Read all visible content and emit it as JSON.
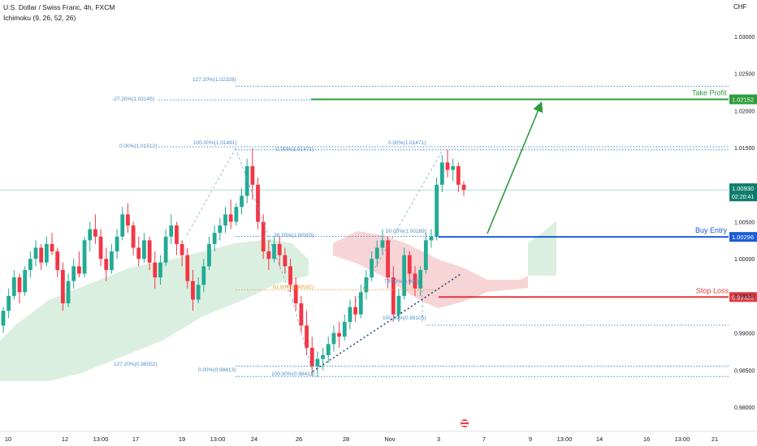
{
  "header": {
    "title": "U.S. Dollar / Swiss Franc, 4h, FXCM",
    "indicator": "Ichimoku (9, 26, 52, 26)",
    "currency": "CHF"
  },
  "chart_data": {
    "type": "candlestick",
    "title": "U.S. Dollar / Swiss Franc, 4h, FXCM",
    "ylim": [
      0.977,
      1.0345
    ],
    "y_ticks": [
      "1.03000",
      "1.02500",
      "1.02000",
      "1.01500",
      "1.01000",
      "1.00500",
      "1.00000",
      "0.99500",
      "0.99000",
      "0.98500",
      "0.98000"
    ],
    "x_ticks": [
      "10",
      "12",
      "13:00",
      "17",
      "19",
      "13:00",
      "24",
      "26",
      "28",
      "Nov",
      "3",
      "7",
      "9",
      "13:00",
      "14",
      "16",
      "13:00",
      "21"
    ],
    "last_price": "1.00930",
    "countdown": "02:20:41",
    "trade_levels": [
      {
        "name": "Take Profit",
        "value": 1.02152,
        "label": "1.02152",
        "color": "#2e9c3c"
      },
      {
        "name": "Buy Entry",
        "value": 1.00296,
        "label": "1.00296",
        "color": "#1e5bd6"
      },
      {
        "name": "Stop Loss",
        "value": 0.99485,
        "label": "0.99485",
        "color": "#e0393e"
      }
    ],
    "fib_labels": [
      {
        "text": "127.20%(1.02328)",
        "value": 1.02328,
        "color": "#4a8ec9"
      },
      {
        "text": "-27.20%(1.02145)",
        "value": 1.02145,
        "color": "#4a8ec9"
      },
      {
        "text": "0.00%(1.01512)",
        "value": 1.01512,
        "color": "#4a8ec9"
      },
      {
        "text": "100.00%(1.01491)",
        "value": 1.01491,
        "color": "#4a8ec9"
      },
      {
        "text": "0.00%(1.01471)",
        "value": 1.01471,
        "color": "#4a8ec9"
      },
      {
        "text": "0.00%(1.01471)",
        "value": 1.01471,
        "color": "#4a8ec9"
      },
      {
        "text": "38.20%(1.00303)",
        "value": 1.00303,
        "color": "#4a8ec9"
      },
      {
        "text": "50.00%(1.00289)",
        "value": 1.00289,
        "color": "#4a8ec9"
      },
      {
        "text": "61.80%(0.99582)",
        "value": 0.99582,
        "color": "#e6a23c"
      },
      {
        "text": "78.60%(0.996)",
        "value": 0.996,
        "color": "#4a8ec9"
      },
      {
        "text": "100.00%(0.99105)",
        "value": 0.99105,
        "color": "#4a8ec9"
      },
      {
        "text": "127.20%(0.98552)",
        "value": 0.98552,
        "color": "#4a8ec9"
      },
      {
        "text": "0.00%(0.98413)",
        "value": 0.98413,
        "color": "#4a8ec9"
      },
      {
        "text": "100.00%(0.98413)",
        "value": 0.98413,
        "color": "#4a8ec9"
      }
    ],
    "candles": [
      [
        0.991,
        0.9935,
        0.99,
        0.993
      ],
      [
        0.993,
        0.996,
        0.992,
        0.995
      ],
      [
        0.995,
        0.9985,
        0.9945,
        0.9975
      ],
      [
        0.9975,
        0.998,
        0.994,
        0.9955
      ],
      [
        0.9955,
        0.999,
        0.995,
        0.9985
      ],
      [
        0.9985,
        1.001,
        0.9975,
        1.0
      ],
      [
        1.0,
        1.0025,
        0.999,
        1.0015
      ],
      [
        1.0015,
        1.002,
        0.9985,
        0.9995
      ],
      [
        0.9995,
        1.003,
        0.999,
        1.002
      ],
      [
        1.002,
        1.0035,
        1.0005,
        1.001
      ],
      [
        1.001,
        1.0015,
        0.9975,
        0.9985
      ],
      [
        0.9985,
        0.9995,
        0.993,
        0.994
      ],
      [
        0.994,
        0.998,
        0.9935,
        0.997
      ],
      [
        0.997,
        1.0,
        0.996,
        0.999
      ],
      [
        0.999,
        1.001,
        0.9975,
        0.998
      ],
      [
        0.998,
        1.003,
        0.9975,
        1.0025
      ],
      [
        1.0025,
        1.005,
        1.001,
        1.004
      ],
      [
        1.004,
        1.006,
        1.002,
        1.003
      ],
      [
        1.003,
        1.004,
        0.999,
        1.0
      ],
      [
        1.0,
        1.0015,
        0.997,
        0.9985
      ],
      [
        0.9985,
        1.002,
        0.998,
        1.001
      ],
      [
        1.001,
        1.004,
        1.0,
        1.003
      ],
      [
        1.003,
        1.007,
        1.0025,
        1.006
      ],
      [
        1.006,
        1.0075,
        1.0035,
        1.0045
      ],
      [
        1.0045,
        1.005,
        1.0005,
        1.0015
      ],
      [
        1.0015,
        1.003,
        0.999,
        1.0
      ],
      [
        1.0,
        1.0035,
        0.9995,
        1.0025
      ],
      [
        1.0025,
        1.003,
        0.9985,
        0.9995
      ],
      [
        0.9995,
        1.001,
        0.996,
        0.9975
      ],
      [
        0.9975,
        1.0005,
        0.9965,
        0.9995
      ],
      [
        0.9995,
        1.004,
        0.999,
        1.003
      ],
      [
        1.003,
        1.006,
        1.002,
        1.0045
      ],
      [
        1.0045,
        1.005,
        1.0005,
        1.002
      ],
      [
        1.002,
        1.0025,
        0.999,
        1.0005
      ],
      [
        1.0005,
        1.0015,
        0.996,
        0.997
      ],
      [
        0.997,
        0.9985,
        0.993,
        0.9945
      ],
      [
        0.9945,
        0.9975,
        0.994,
        0.9965
      ],
      [
        0.9965,
        1.0,
        0.9955,
        0.999
      ],
      [
        0.999,
        1.003,
        0.9985,
        1.002
      ],
      [
        1.002,
        1.0045,
        1.001,
        1.0035
      ],
      [
        1.0035,
        1.0055,
        1.0025,
        1.0045
      ],
      [
        1.0045,
        1.007,
        1.0035,
        1.006
      ],
      [
        1.006,
        1.008,
        1.004,
        1.005
      ],
      [
        1.005,
        1.0075,
        1.0045,
        1.007
      ],
      [
        1.007,
        1.0095,
        1.006,
        1.0085
      ],
      [
        1.0085,
        1.0135,
        1.0075,
        1.0125
      ],
      [
        1.0125,
        1.0149,
        1.008,
        1.01
      ],
      [
        1.01,
        1.011,
        1.004,
        1.005
      ],
      [
        1.005,
        1.006,
        1.0,
        1.001
      ],
      [
        1.001,
        1.0025,
        0.9985,
        1.0
      ],
      [
        1.0,
        1.003,
        0.9995,
        1.002
      ],
      [
        1.002,
        1.003,
        0.999,
        1.0005
      ],
      [
        1.0005,
        1.0015,
        0.998,
        0.999
      ],
      [
        0.999,
        1.0,
        0.9955,
        0.9965
      ],
      [
        0.9965,
        0.9975,
        0.993,
        0.994
      ],
      [
        0.994,
        0.995,
        0.99,
        0.991
      ],
      [
        0.991,
        0.993,
        0.987,
        0.988
      ],
      [
        0.988,
        0.9895,
        0.9842,
        0.9855
      ],
      [
        0.9855,
        0.9875,
        0.9841,
        0.9865
      ],
      [
        0.9865,
        0.988,
        0.985,
        0.987
      ],
      [
        0.987,
        0.9895,
        0.986,
        0.9885
      ],
      [
        0.9885,
        0.991,
        0.9875,
        0.99
      ],
      [
        0.99,
        0.9915,
        0.988,
        0.9895
      ],
      [
        0.9895,
        0.9925,
        0.989,
        0.9915
      ],
      [
        0.9915,
        0.9945,
        0.9905,
        0.9935
      ],
      [
        0.9935,
        0.995,
        0.9915,
        0.9925
      ],
      [
        0.9925,
        0.9965,
        0.992,
        0.9955
      ],
      [
        0.9955,
        0.9985,
        0.9945,
        0.9975
      ],
      [
        0.9975,
        1.001,
        0.997,
        1.0
      ],
      [
        1.0,
        1.0025,
        0.999,
        1.0015
      ],
      [
        1.0015,
        1.004,
        1.0005,
        1.0025
      ],
      [
        1.0025,
        1.003,
        0.996,
        0.9975
      ],
      [
        0.9975,
        0.999,
        0.9915,
        0.9925
      ],
      [
        0.9925,
        0.996,
        0.9915,
        0.995
      ],
      [
        0.995,
        1.0015,
        0.9945,
        1.0005
      ],
      [
        1.0005,
        1.001,
        0.9965,
        0.998
      ],
      [
        0.998,
        0.999,
        0.995,
        0.996
      ],
      [
        0.996,
        0.999,
        0.995,
        0.9985
      ],
      [
        0.9985,
        1.0035,
        0.998,
        1.0025
      ],
      [
        1.0025,
        1.004,
        1.0015,
        1.003
      ],
      [
        1.003,
        1.011,
        1.0025,
        1.01
      ],
      [
        1.01,
        1.014,
        1.009,
        1.013
      ],
      [
        1.013,
        1.0147,
        1.011,
        1.012
      ],
      [
        1.012,
        1.0135,
        1.0105,
        1.0125
      ],
      [
        1.0125,
        1.013,
        1.009,
        1.01
      ],
      [
        1.01,
        1.0105,
        1.0085,
        1.0093
      ]
    ]
  }
}
